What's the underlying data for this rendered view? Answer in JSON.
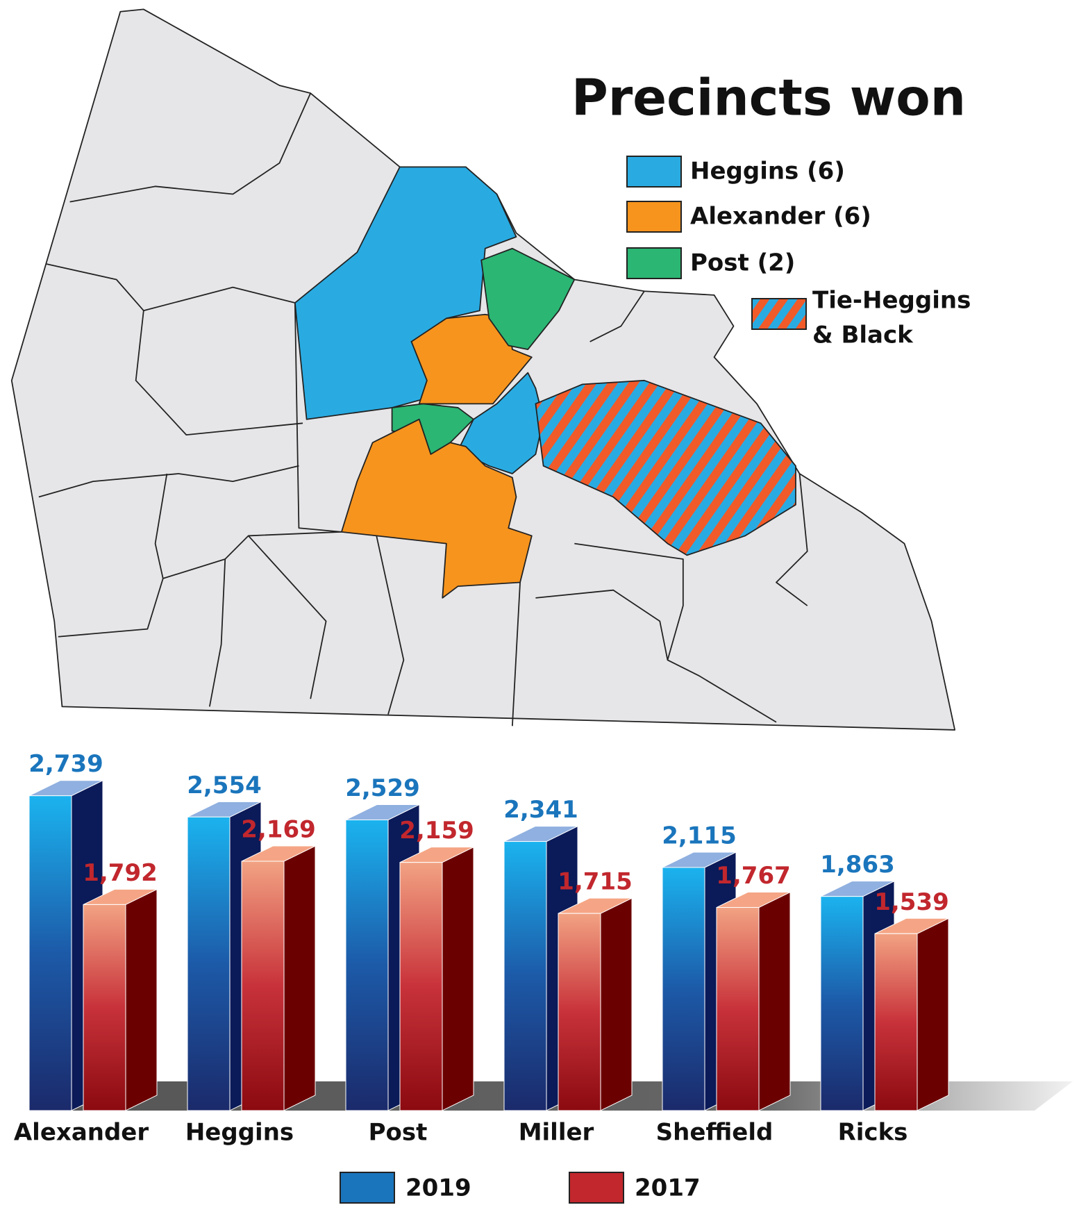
{
  "map_legend": {
    "title": "Precincts won",
    "items": [
      "Heggins (6)",
      "Alexander (6)",
      "Post (2)"
    ],
    "tie": [
      "Tie-Heggins",
      "& Black"
    ]
  },
  "chart_data": {
    "type": "bar",
    "categories": [
      "Alexander",
      "Heggins",
      "Post",
      "Miller",
      "Sheffield",
      "Ricks"
    ],
    "series": [
      {
        "name": "2019",
        "color": "#1a75bc",
        "values": [
          2739,
          2554,
          2529,
          2341,
          2115,
          1863
        ],
        "value_labels": [
          "2,739",
          "2,554",
          "2,529",
          "2,341",
          "2,115",
          "1,863"
        ]
      },
      {
        "name": "2017",
        "color": "#c1272d",
        "values": [
          1792,
          2169,
          2159,
          1715,
          1767,
          1539
        ],
        "value_labels": [
          "1,792",
          "2,169",
          "2,159",
          "1,715",
          "1,767",
          "1,539"
        ]
      }
    ]
  }
}
